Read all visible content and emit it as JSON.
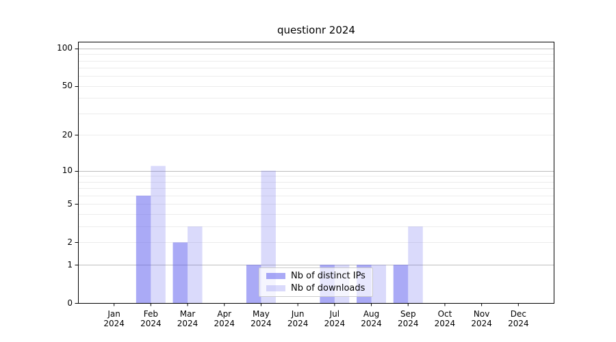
{
  "title": "questionr 2024",
  "legend": {
    "items": [
      {
        "label": "Nb of distinct IPs",
        "swatch": "rgba(85,85,238,0.5)"
      },
      {
        "label": "Nb of downloads",
        "swatch": "rgba(85,85,238,0.22)"
      }
    ]
  },
  "chart_data": {
    "type": "bar",
    "title": "questionr 2024",
    "categories": [
      "Jan",
      "Feb",
      "Mar",
      "Apr",
      "May",
      "Jun",
      "Jul",
      "Aug",
      "Sep",
      "Oct",
      "Nov",
      "Dec"
    ],
    "year": "2024",
    "series": [
      {
        "name": "Nb of distinct IPs",
        "color": "rgba(85,85,238,0.5)",
        "values": [
          0,
          6,
          2,
          0,
          1,
          0,
          1,
          1,
          1,
          0,
          0,
          0
        ]
      },
      {
        "name": "Nb of downloads",
        "color": "rgba(85,85,238,0.22)",
        "values": [
          0,
          11,
          3,
          0,
          10,
          0,
          1,
          1,
          3,
          0,
          0,
          0
        ]
      }
    ],
    "bar_base_color": "#5555ee",
    "y_axis": {
      "scale": "log1p",
      "ticks": [
        0,
        1,
        2,
        5,
        10,
        20,
        50,
        100
      ],
      "tick_labels": [
        "0",
        "1",
        "2",
        "5",
        "10",
        "20",
        "50",
        "100"
      ],
      "max": 113,
      "major_gridlines": [
        1,
        10,
        100
      ],
      "minor_gridlines": [
        2,
        3,
        4,
        5,
        6,
        7,
        8,
        9,
        20,
        30,
        40,
        50,
        60,
        70,
        80,
        90
      ],
      "major_grid_color": "#bcbcbc",
      "minor_grid_color": "#ececec"
    },
    "grid": true,
    "legend_position": "lower center"
  }
}
